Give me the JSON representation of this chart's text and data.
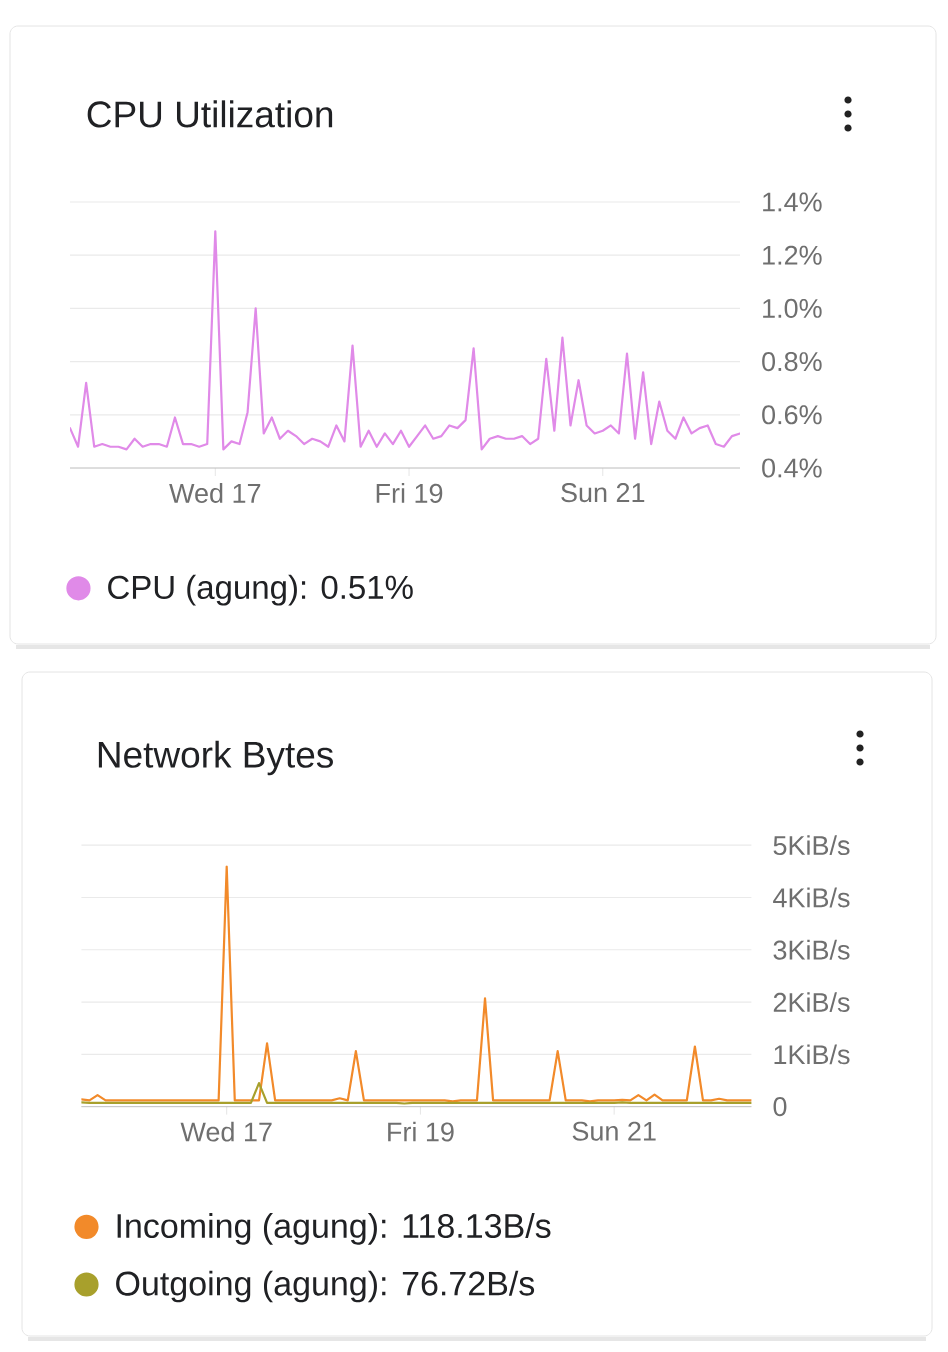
{
  "chart_data": [
    {
      "type": "line",
      "title": "CPU Utilization",
      "categories": [
        null,
        null,
        null,
        null,
        null,
        null,
        null,
        null,
        null,
        null,
        null,
        null,
        null,
        null,
        null,
        null,
        null,
        null,
        "Wed 17",
        null,
        null,
        null,
        null,
        null,
        null,
        null,
        null,
        null,
        null,
        null,
        null,
        null,
        null,
        null,
        null,
        null,
        null,
        null,
        null,
        null,
        null,
        null,
        "Fri 19",
        null,
        null,
        null,
        null,
        null,
        null,
        null,
        null,
        null,
        null,
        null,
        null,
        null,
        null,
        null,
        null,
        null,
        null,
        null,
        null,
        null,
        null,
        null,
        "Sun 21",
        null,
        null,
        null,
        null,
        null,
        null,
        null,
        null,
        null,
        null,
        null,
        null,
        null,
        null,
        null,
        null,
        null
      ],
      "series": [
        {
          "name": "CPU (agung): 0.51%",
          "color": "#e08ae8",
          "values": [
            0.55,
            0.48,
            0.72,
            0.48,
            0.49,
            0.48,
            0.48,
            0.47,
            0.51,
            0.48,
            0.49,
            0.49,
            0.48,
            0.59,
            0.49,
            0.49,
            0.48,
            0.49,
            1.29,
            0.47,
            0.5,
            0.49,
            0.61,
            1.0,
            0.53,
            0.59,
            0.51,
            0.54,
            0.52,
            0.49,
            0.51,
            0.5,
            0.48,
            0.56,
            0.5,
            0.86,
            0.48,
            0.54,
            0.48,
            0.53,
            0.49,
            0.54,
            0.48,
            0.52,
            0.56,
            0.51,
            0.52,
            0.56,
            0.55,
            0.58,
            0.85,
            0.47,
            0.51,
            0.52,
            0.51,
            0.51,
            0.52,
            0.49,
            0.51,
            0.81,
            0.54,
            0.89,
            0.56,
            0.73,
            0.56,
            0.53,
            0.54,
            0.56,
            0.53,
            0.83,
            0.51,
            0.76,
            0.49,
            0.65,
            0.54,
            0.51,
            0.59,
            0.53,
            0.55,
            0.56,
            0.49,
            0.48,
            0.52,
            0.53
          ]
        }
      ],
      "ylim": [
        0.4,
        1.4
      ],
      "yticks": [
        {
          "value": 0.4,
          "label": "0.4%"
        },
        {
          "value": 0.6,
          "label": "0.6%"
        },
        {
          "value": 0.8,
          "label": "0.8%"
        },
        {
          "value": 1.0,
          "label": "1.0%"
        },
        {
          "value": 1.2,
          "label": "1.2%"
        },
        {
          "value": 1.4,
          "label": "1.4%"
        }
      ],
      "grid": "y",
      "legend": "bottom left"
    },
    {
      "type": "line",
      "title": "Network Bytes",
      "categories": [
        null,
        null,
        null,
        null,
        null,
        null,
        null,
        null,
        null,
        null,
        null,
        null,
        null,
        null,
        null,
        null,
        null,
        null,
        "Wed 17",
        null,
        null,
        null,
        null,
        null,
        null,
        null,
        null,
        null,
        null,
        null,
        null,
        null,
        null,
        null,
        null,
        null,
        null,
        null,
        null,
        null,
        null,
        null,
        "Fri 19",
        null,
        null,
        null,
        null,
        null,
        null,
        null,
        null,
        null,
        null,
        null,
        null,
        null,
        null,
        null,
        null,
        null,
        null,
        null,
        null,
        null,
        null,
        null,
        "Sun 21",
        null,
        null,
        null,
        null,
        null,
        null,
        null,
        null,
        null,
        null,
        null,
        null,
        null,
        null,
        null,
        null,
        null
      ],
      "series": [
        {
          "name": "Incoming (agung): 118.13B/s",
          "color": "#f28a2a",
          "values": [
            0.14,
            0.12,
            0.22,
            0.12,
            0.12,
            0.12,
            0.12,
            0.12,
            0.12,
            0.12,
            0.12,
            0.12,
            0.12,
            0.12,
            0.12,
            0.12,
            0.12,
            0.12,
            4.59,
            0.12,
            0.12,
            0.12,
            0.12,
            1.21,
            0.12,
            0.12,
            0.12,
            0.12,
            0.12,
            0.12,
            0.12,
            0.12,
            0.16,
            0.12,
            1.06,
            0.12,
            0.12,
            0.12,
            0.12,
            0.12,
            0.12,
            0.12,
            0.12,
            0.12,
            0.12,
            0.12,
            0.1,
            0.12,
            0.12,
            0.12,
            2.07,
            0.12,
            0.12,
            0.12,
            0.12,
            0.12,
            0.12,
            0.12,
            0.12,
            1.06,
            0.12,
            0.12,
            0.12,
            0.1,
            0.12,
            0.12,
            0.12,
            0.13,
            0.12,
            0.22,
            0.12,
            0.23,
            0.12,
            0.12,
            0.12,
            0.12,
            1.15,
            0.12,
            0.12,
            0.15,
            0.12,
            0.12,
            0.12,
            0.12
          ]
        },
        {
          "name": "Outgoing (agung): 76.72B/s",
          "color": "#a8a02c",
          "values": [
            0.08,
            0.07,
            0.07,
            0.07,
            0.07,
            0.07,
            0.07,
            0.07,
            0.07,
            0.07,
            0.07,
            0.07,
            0.07,
            0.07,
            0.07,
            0.07,
            0.07,
            0.07,
            0.07,
            0.07,
            0.07,
            0.07,
            0.45,
            0.07,
            0.07,
            0.07,
            0.07,
            0.07,
            0.07,
            0.07,
            0.07,
            0.07,
            0.07,
            0.07,
            0.07,
            0.07,
            0.07,
            0.07,
            0.07,
            0.07,
            0.06,
            0.07,
            0.07,
            0.07,
            0.07,
            0.07,
            0.07,
            0.07,
            0.07,
            0.07,
            0.07,
            0.07,
            0.07,
            0.07,
            0.07,
            0.07,
            0.07,
            0.07,
            0.07,
            0.07,
            0.07,
            0.07,
            0.07,
            0.07,
            0.07,
            0.07,
            0.07,
            0.08,
            0.07,
            0.07,
            0.07,
            0.07,
            0.07,
            0.07,
            0.07,
            0.07,
            0.07,
            0.07,
            0.07,
            0.07,
            0.07,
            0.07,
            0.07,
            0.07
          ]
        }
      ],
      "ylim": [
        0,
        5
      ],
      "yticks": [
        0,
        {
          "value": 1,
          "label": "1KiB/s"
        },
        {
          "value": 2,
          "label": "2KiB/s"
        },
        {
          "value": 3,
          "label": "3KiB/s"
        },
        {
          "value": 4,
          "label": "4KiB/s"
        },
        {
          "value": 5,
          "label": "5KiB/s"
        }
      ],
      "grid": "y",
      "legend": "bottom left"
    }
  ]
}
